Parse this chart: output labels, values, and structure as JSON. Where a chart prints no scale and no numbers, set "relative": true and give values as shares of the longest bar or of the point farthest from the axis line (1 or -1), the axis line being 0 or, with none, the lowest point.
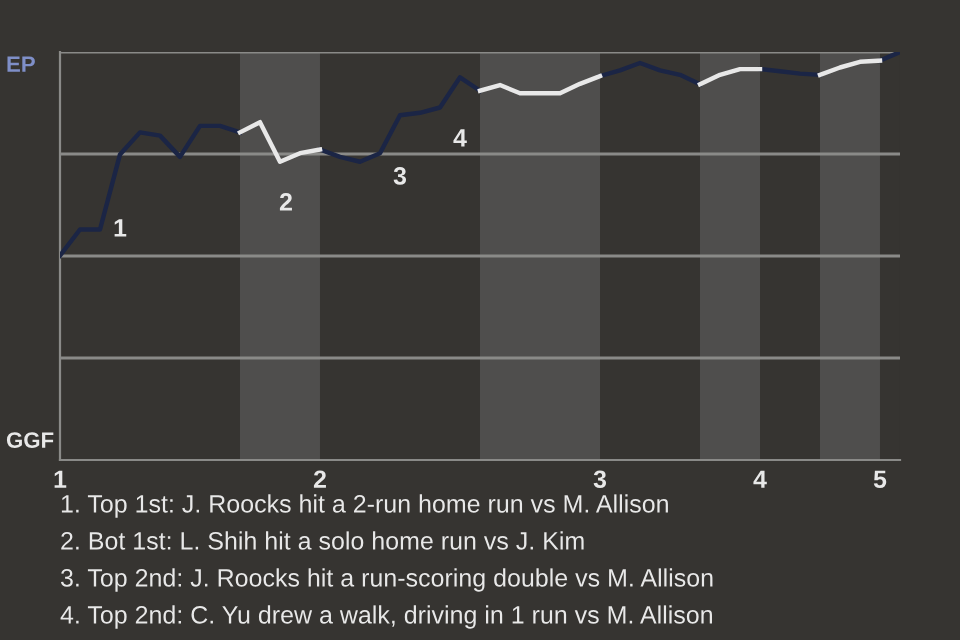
{
  "chart_data": {
    "type": "line",
    "relative": true,
    "categories": [
      "1",
      null,
      null,
      null,
      null,
      null,
      null,
      null,
      null,
      null,
      null,
      null,
      null,
      "2",
      null,
      null,
      null,
      null,
      null,
      null,
      null,
      null,
      null,
      null,
      null,
      null,
      null,
      "3",
      null,
      null,
      null,
      null,
      null,
      null,
      null,
      "4",
      null,
      null,
      null,
      null,
      null,
      "5",
      null
    ],
    "series": [
      {
        "color": "#1b2545",
        "values": [
          0.501,
          0.565,
          0.565,
          0.749,
          0.803,
          0.795,
          0.743,
          0.819,
          0.819,
          0.803,
          null,
          null,
          null,
          0.761,
          0.743,
          0.731,
          0.752,
          0.845,
          0.851,
          0.864,
          0.938,
          0.905,
          null,
          null,
          null,
          null,
          null,
          0.941,
          0.955,
          0.973,
          0.955,
          0.944,
          0.921,
          null,
          null,
          0.958,
          0.953,
          0.947,
          0.944,
          null,
          null,
          0.979,
          1
        ]
      },
      {
        "color": "#e8e8e8",
        "values": [
          null,
          null,
          null,
          null,
          null,
          null,
          null,
          null,
          null,
          0.803,
          0.828,
          0.731,
          0.752,
          0.761,
          null,
          null,
          null,
          null,
          null,
          null,
          null,
          0.905,
          0.919,
          0.899,
          0.899,
          0.899,
          0.922,
          0.941,
          null,
          null,
          null,
          null,
          0.921,
          0.944,
          0.958,
          0.958,
          null,
          null,
          0.944,
          0.962,
          0.976,
          0.979,
          null
        ]
      }
    ],
    "grid": "y",
    "annotations": [
      "1",
      "2",
      "3",
      "4",
      "EP",
      "GGF",
      "1. Top 1st: J. Roocks hit a 2-run home run vs M. Allison",
      "2. Bot 1st: L. Shih hit a solo home run vs J. Kim",
      "3. Top 2nd: J. Roocks hit a run-scoring double vs M. Allison",
      "4. Top 2nd: C. Yu drew a walk, driving in 1 run vs M. Allison"
    ]
  }
}
